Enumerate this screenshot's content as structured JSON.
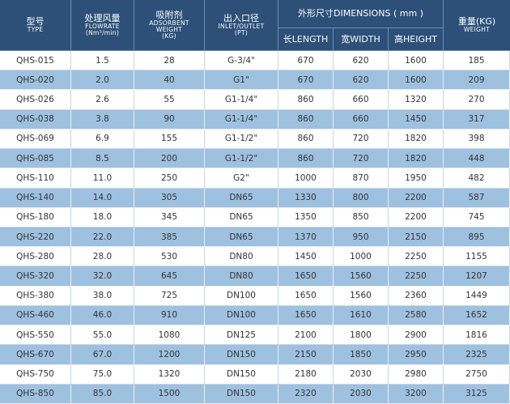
{
  "header": {
    "type": [
      "型号",
      "TYPE"
    ],
    "flowrate": [
      "处理风量",
      "FLOWRATE",
      "(Nm³/min)"
    ],
    "adsorbent": [
      "吸附剂",
      "ADSORBENT",
      "WEIGHT",
      "(KG)"
    ],
    "inlet": [
      "出入口径",
      "INLET/OUTLET",
      "(PT)"
    ],
    "dimensions": "外形尺寸DIMENSIONS ( mm )",
    "length": "长LENGTH",
    "width": "宽WIDTH",
    "height": "高HEIGHT",
    "weight": [
      "重量(KG)",
      "WEIGHT"
    ]
  },
  "table": {
    "rows": [
      [
        "QHS-015",
        "1.5",
        "28",
        "G-3/4\"",
        "670",
        "620",
        "1600",
        "185"
      ],
      [
        "QHS-020",
        "2.0",
        "40",
        "G1\"",
        "670",
        "620",
        "1600",
        "209"
      ],
      [
        "QHS-026",
        "2.6",
        "55",
        "G1-1/4\"",
        "860",
        "660",
        "1320",
        "270"
      ],
      [
        "QHS-038",
        "3.8",
        "90",
        "G1-1/4\"",
        "860",
        "660",
        "1450",
        "317"
      ],
      [
        "QHS-069",
        "6.9",
        "155",
        "G1-1/2\"",
        "860",
        "720",
        "1820",
        "398"
      ],
      [
        "QHS-085",
        "8.5",
        "200",
        "G1-1/2\"",
        "860",
        "720",
        "1820",
        "448"
      ],
      [
        "QHS-110",
        "11.0",
        "250",
        "G2\"",
        "1000",
        "870",
        "1950",
        "482"
      ],
      [
        "QHS-140",
        "14.0",
        "305",
        "DN65",
        "1330",
        "800",
        "2200",
        "587"
      ],
      [
        "QHS-180",
        "18.0",
        "345",
        "DN65",
        "1350",
        "850",
        "2200",
        "745"
      ],
      [
        "QHS-220",
        "22.0",
        "385",
        "DN65",
        "1370",
        "950",
        "2150",
        "895"
      ],
      [
        "QHS-280",
        "28.0",
        "530",
        "DN80",
        "1450",
        "1000",
        "2250",
        "1155"
      ],
      [
        "QHS-320",
        "32.0",
        "645",
        "DN80",
        "1650",
        "1560",
        "2250",
        "1207"
      ],
      [
        "QHS-380",
        "38.0",
        "725",
        "DN100",
        "1650",
        "1560",
        "2360",
        "1449"
      ],
      [
        "QHS-460",
        "46.0",
        "910",
        "DN100",
        "1650",
        "1610",
        "2580",
        "1652"
      ],
      [
        "QHS-550",
        "55.0",
        "1080",
        "DN125",
        "2100",
        "1800",
        "2900",
        "1816"
      ],
      [
        "QHS-670",
        "67.0",
        "1200",
        "DN150",
        "2150",
        "1850",
        "2950",
        "2325"
      ],
      [
        "QHS-750",
        "75.0",
        "1320",
        "DN150",
        "2180",
        "2030",
        "2980",
        "2750"
      ],
      [
        "QHS-850",
        "85.0",
        "1500",
        "DN150",
        "2320",
        "2030",
        "3200",
        "3125"
      ]
    ]
  }
}
